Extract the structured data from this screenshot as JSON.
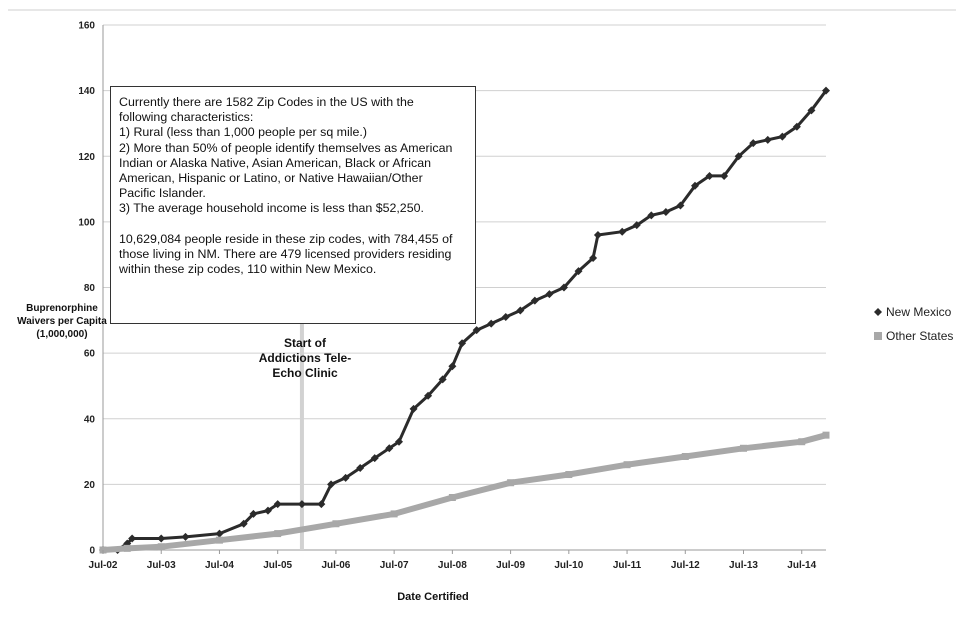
{
  "chart_data": {
    "type": "line",
    "title": "",
    "xlabel": "Date Certified",
    "ylabel": "Buprenorphine Waivers per Capita (1,000,000)",
    "ylim": [
      0,
      160
    ],
    "yticks": [
      "0",
      "20",
      "40",
      "60",
      "80",
      "100",
      "120",
      "140",
      "160"
    ],
    "xticks": [
      "Jul-02",
      "Jul-03",
      "Jul-04",
      "Jul-05",
      "Jul-06",
      "Jul-07",
      "Jul-08",
      "Jul-09",
      "Jul-10",
      "Jul-11",
      "Jul-12",
      "Jul-13",
      "Jul-14"
    ],
    "xlim": [
      "2002-07",
      "2014-12"
    ],
    "grid": "horizontal",
    "legend_position": "right",
    "series": [
      {
        "name": "New Mexico",
        "color": "#2b2b2b",
        "marker": "diamond",
        "points": [
          [
            "2002-07",
            0
          ],
          [
            "2002-10",
            0
          ],
          [
            "2002-12",
            2
          ],
          [
            "2003-01",
            3.5
          ],
          [
            "2003-07",
            3.5
          ],
          [
            "2003-12",
            4
          ],
          [
            "2004-07",
            5
          ],
          [
            "2004-12",
            8
          ],
          [
            "2005-02",
            11
          ],
          [
            "2005-05",
            12
          ],
          [
            "2005-07",
            14
          ],
          [
            "2005-12",
            14
          ],
          [
            "2006-04",
            14
          ],
          [
            "2006-06",
            20
          ],
          [
            "2006-09",
            22
          ],
          [
            "2006-12",
            25
          ],
          [
            "2007-03",
            28
          ],
          [
            "2007-06",
            31
          ],
          [
            "2007-08",
            33
          ],
          [
            "2007-11",
            43
          ],
          [
            "2008-02",
            47
          ],
          [
            "2008-05",
            52
          ],
          [
            "2008-07",
            56
          ],
          [
            "2008-09",
            63
          ],
          [
            "2008-12",
            67
          ],
          [
            "2009-03",
            69
          ],
          [
            "2009-06",
            71
          ],
          [
            "2009-09",
            73
          ],
          [
            "2009-12",
            76
          ],
          [
            "2010-03",
            78
          ],
          [
            "2010-06",
            80
          ],
          [
            "2010-09",
            85
          ],
          [
            "2010-12",
            89
          ],
          [
            "2011-01",
            96
          ],
          [
            "2011-06",
            97
          ],
          [
            "2011-09",
            99
          ],
          [
            "2011-12",
            102
          ],
          [
            "2012-03",
            103
          ],
          [
            "2012-06",
            105
          ],
          [
            "2012-09",
            111
          ],
          [
            "2012-12",
            114
          ],
          [
            "2013-03",
            114
          ],
          [
            "2013-06",
            120
          ],
          [
            "2013-09",
            124
          ],
          [
            "2013-12",
            125
          ],
          [
            "2014-03",
            126
          ],
          [
            "2014-06",
            129
          ],
          [
            "2014-09",
            134
          ],
          [
            "2014-12",
            140
          ]
        ]
      },
      {
        "name": "Other States",
        "color": "#a8a8a8",
        "marker": "square",
        "points": [
          [
            "2002-07",
            0
          ],
          [
            "2002-12",
            0.5
          ],
          [
            "2003-07",
            1
          ],
          [
            "2004-07",
            3
          ],
          [
            "2005-07",
            5
          ],
          [
            "2006-07",
            8
          ],
          [
            "2007-07",
            11
          ],
          [
            "2008-07",
            16
          ],
          [
            "2009-07",
            20.5
          ],
          [
            "2010-07",
            23
          ],
          [
            "2011-07",
            26
          ],
          [
            "2012-07",
            28.5
          ],
          [
            "2013-07",
            31
          ],
          [
            "2014-07",
            33
          ],
          [
            "2014-12",
            35
          ]
        ]
      }
    ],
    "annotations": {
      "note_lines": [
        "Currently there are 1582 Zip Codes in the US with the",
        "following characteristics:",
        "1) Rural (less than 1,000 people per sq mile.)",
        "2) More than 50% of people identify themselves as American",
        "Indian or Alaska Native, Asian American, Black or African",
        "American, Hispanic or Latino, or Native Hawaiian/Other",
        "Pacific Islander.",
        "3) The average household income is less than $52,250.",
        "",
        "10,629,084 people reside in these zip codes, with 784,455 of",
        "those living in NM.  There are 479 licensed providers residing",
        "within these zip codes, 110 within New Mexico."
      ],
      "marker_date": "2005-12",
      "marker_label_lines": [
        "Start of",
        "Addictions Tele-",
        "Echo Clinic"
      ]
    }
  }
}
